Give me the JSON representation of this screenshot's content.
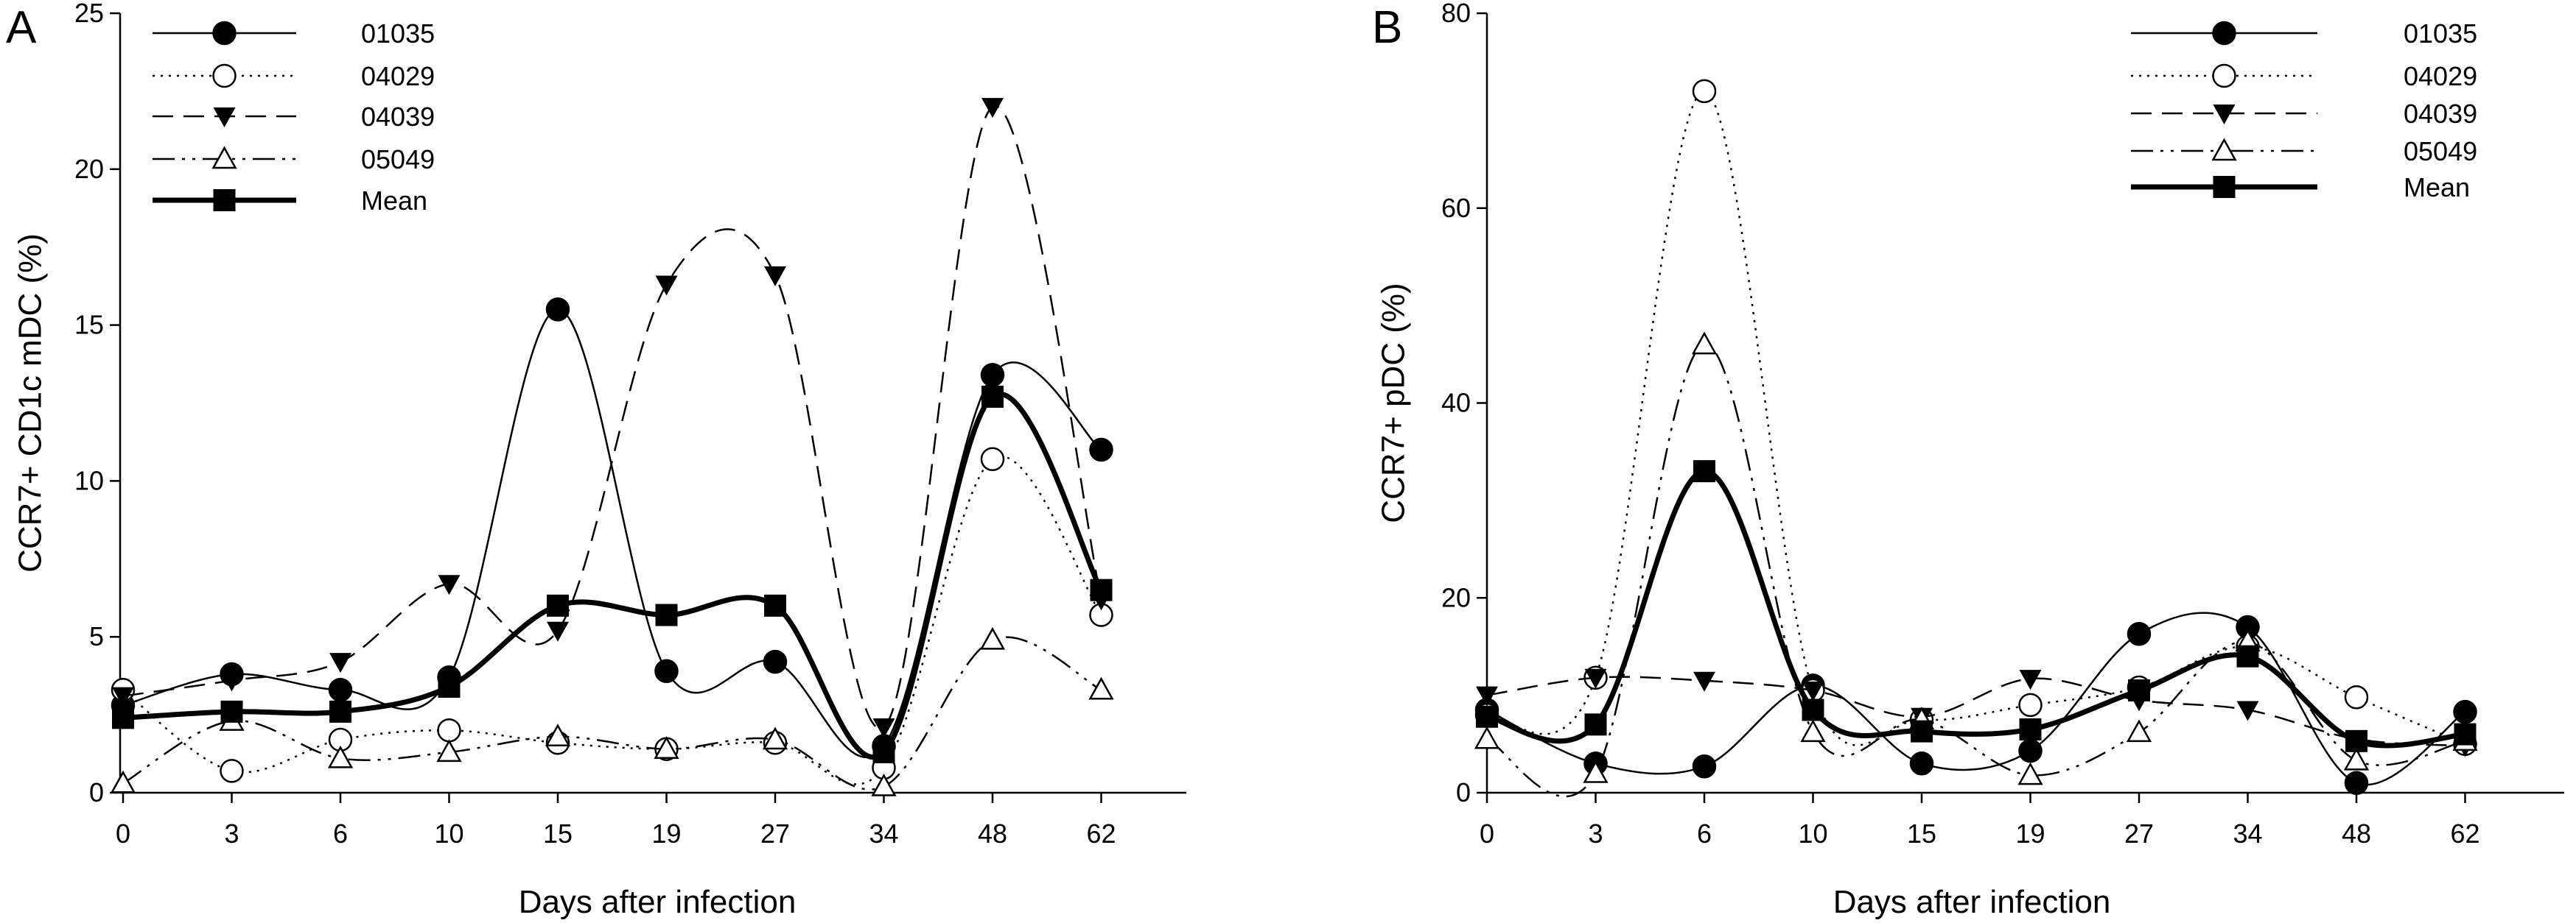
{
  "chart_data": [
    {
      "type": "line",
      "panel_label": "A",
      "xlabel": "Days after infection",
      "ylabel": "CCR7+ CD1c mDC (%)",
      "categories": [
        "0",
        "3",
        "6",
        "10",
        "15",
        "19",
        "27",
        "34",
        "48",
        "62"
      ],
      "ylim": [
        0,
        25
      ],
      "yticks": [
        0,
        5,
        10,
        15,
        20,
        25
      ],
      "legend_position": "top-left",
      "grid": false,
      "series": [
        {
          "name": "01035",
          "marker": "filled-circle",
          "line": "solid",
          "values": [
            2.8,
            3.8,
            3.3,
            3.7,
            15.5,
            3.9,
            4.2,
            1.5,
            13.4,
            11.0
          ]
        },
        {
          "name": "04029",
          "marker": "open-circle",
          "line": "dotted",
          "values": [
            3.3,
            0.7,
            1.7,
            2.0,
            1.6,
            1.4,
            1.6,
            0.8,
            10.7,
            5.7
          ]
        },
        {
          "name": "04039",
          "marker": "filled-triangle-down",
          "line": "dashed",
          "values": [
            3.1,
            3.6,
            4.2,
            6.7,
            5.2,
            16.3,
            16.6,
            2.1,
            22.0,
            6.2
          ]
        },
        {
          "name": "05049",
          "marker": "open-triangle-up",
          "line": "dash-dot-dot",
          "values": [
            0.3,
            2.3,
            1.1,
            1.3,
            1.8,
            1.4,
            1.7,
            0.2,
            4.9,
            3.3
          ]
        },
        {
          "name": "Mean",
          "marker": "filled-square",
          "line": "thick-solid",
          "values": [
            2.4,
            2.6,
            2.6,
            3.4,
            6.0,
            5.7,
            6.0,
            1.3,
            12.7,
            6.5
          ]
        }
      ]
    },
    {
      "type": "line",
      "panel_label": "B",
      "xlabel": "Days after infection",
      "ylabel": "CCR7+ pDC (%)",
      "categories": [
        "0",
        "3",
        "6",
        "10",
        "15",
        "19",
        "27",
        "34",
        "48",
        "62"
      ],
      "ylim": [
        0,
        80
      ],
      "yticks": [
        0,
        20,
        40,
        60,
        80
      ],
      "legend_position": "top-right",
      "grid": false,
      "series": [
        {
          "name": "01035",
          "marker": "filled-circle",
          "line": "solid",
          "values": [
            8.5,
            3.0,
            2.7,
            11.0,
            3.0,
            4.3,
            16.3,
            17.0,
            1.0,
            8.3
          ]
        },
        {
          "name": "04029",
          "marker": "open-circle",
          "line": "dotted",
          "values": [
            8.0,
            11.8,
            72.0,
            10.5,
            7.5,
            9.0,
            10.8,
            15.0,
            9.8,
            5.0
          ]
        },
        {
          "name": "04039",
          "marker": "filled-triangle-down",
          "line": "dashed",
          "values": [
            10.0,
            11.8,
            11.5,
            10.5,
            7.8,
            11.7,
            9.5,
            8.5,
            5.5,
            4.8
          ]
        },
        {
          "name": "05049",
          "marker": "open-triangle-up",
          "line": "dash-dot-dot",
          "values": [
            5.5,
            2.0,
            46.0,
            6.2,
            7.5,
            1.8,
            6.2,
            15.5,
            3.3,
            5.3
          ]
        },
        {
          "name": "Mean",
          "marker": "filled-square",
          "line": "thick-solid",
          "values": [
            7.8,
            7.0,
            33.0,
            8.5,
            6.3,
            6.5,
            10.5,
            14.0,
            5.3,
            6.0
          ]
        }
      ]
    }
  ]
}
